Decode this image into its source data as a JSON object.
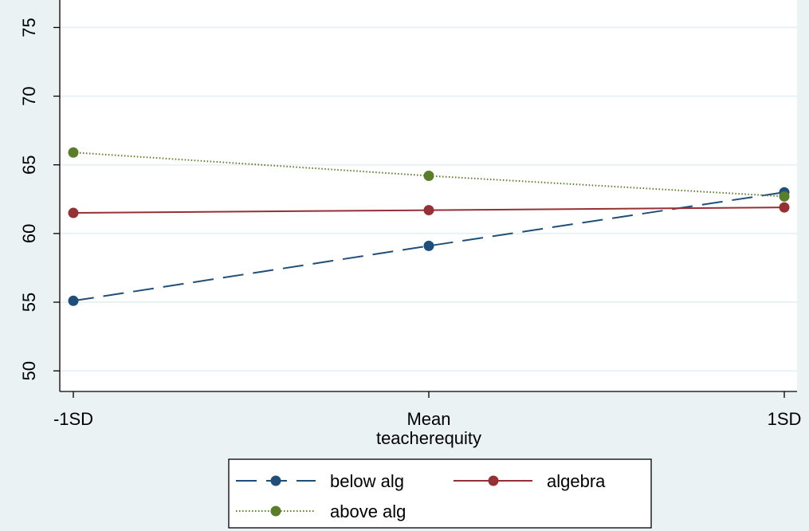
{
  "chart_data": {
    "type": "line",
    "xlabel": "teacherequity",
    "ylabel": "",
    "categories": [
      "-1SD",
      "Mean",
      "1SD"
    ],
    "ylim": [
      48.5,
      77
    ],
    "yticks": [
      50,
      55,
      60,
      65,
      70,
      75
    ],
    "grid": true,
    "legend_position": "bottom",
    "series": [
      {
        "name": "below alg",
        "values": [
          55.1,
          59.1,
          63.0
        ],
        "color": "#1f4e79",
        "style": "dashed"
      },
      {
        "name": "algebra",
        "values": [
          61.5,
          61.7,
          61.9
        ],
        "color": "#953035",
        "style": "solid"
      },
      {
        "name": "above alg",
        "values": [
          65.9,
          64.2,
          62.7
        ],
        "color": "#5a7d2a",
        "style": "dotted"
      }
    ],
    "colors": {
      "page_background": "#eaf2f3",
      "plot_background": "#ffffff",
      "grid": "#eaf2f3"
    }
  }
}
